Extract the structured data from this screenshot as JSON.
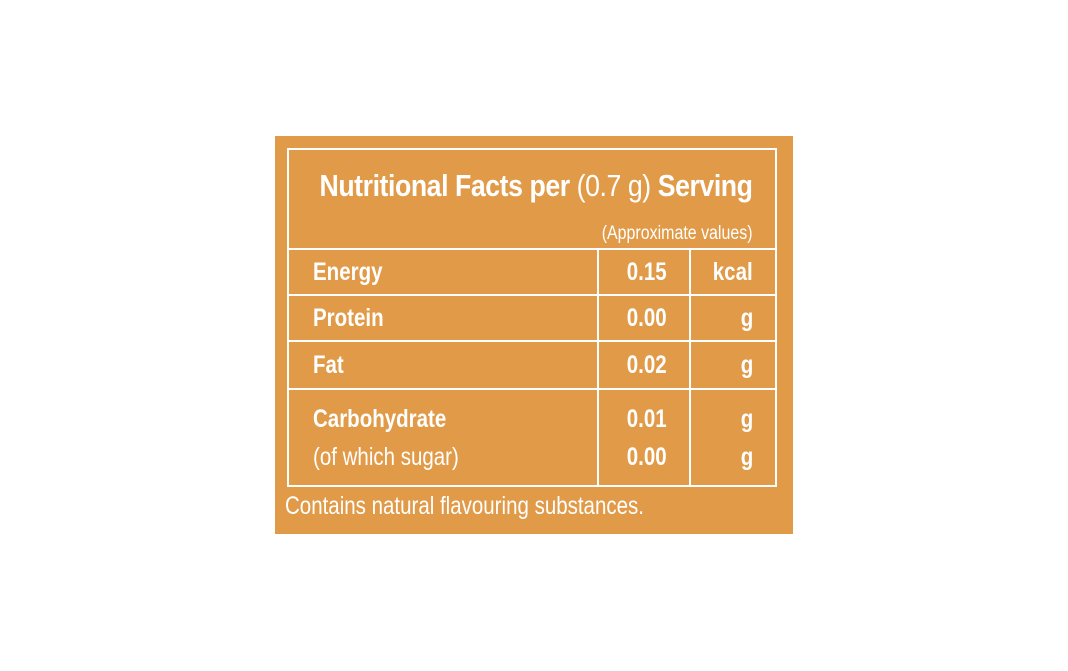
{
  "label": {
    "title_bold_1": "Nutritional Facts per",
    "title_mid": "(0.7 g)",
    "title_bold_2": "Serving",
    "subtitle": "(Approximate values)",
    "rows": [
      {
        "name": "Energy",
        "value": "0.15",
        "unit": "kcal"
      },
      {
        "name": "Protein",
        "value": "0.00",
        "unit": "g"
      },
      {
        "name": "Fat",
        "value": "0.02",
        "unit": "g"
      },
      {
        "name": "Carbohydrate",
        "value": "0.01",
        "unit": "g"
      }
    ],
    "subrow": {
      "name": "(of which sugar)",
      "value": "0.00",
      "unit": "g"
    },
    "footer": "Contains natural flavouring substances."
  },
  "colors": {
    "panel": "#E09A48",
    "text": "#FFFFFF"
  }
}
